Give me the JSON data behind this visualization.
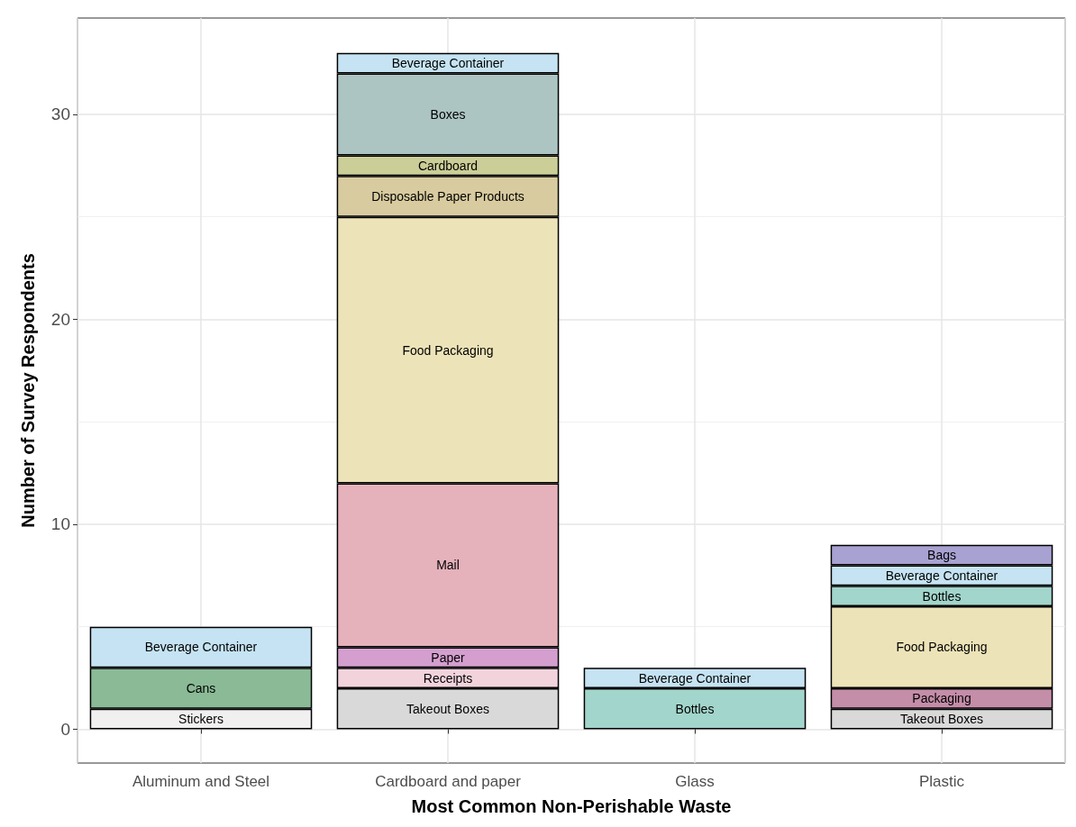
{
  "chart_data": {
    "type": "bar",
    "stacked": true,
    "xlabel": "Most Common Non-Perishable Waste",
    "ylabel": "Number of Survey Respondents",
    "categories": [
      "Aluminum and Steel",
      "Cardboard and paper",
      "Glass",
      "Plastic"
    ],
    "series": [
      {
        "name": "Takeout Boxes",
        "color": "#d9d9d9",
        "values": [
          null,
          2,
          null,
          1
        ]
      },
      {
        "name": "Stickers",
        "color": "#f0f0f0",
        "values": [
          1,
          null,
          null,
          null
        ]
      },
      {
        "name": "Receipts",
        "color": "#f2d3dc",
        "values": [
          null,
          1,
          null,
          null
        ]
      },
      {
        "name": "Paper",
        "color": "#d49fcf",
        "values": [
          null,
          1,
          null,
          null
        ]
      },
      {
        "name": "Packaging",
        "color": "#c48da8",
        "values": [
          null,
          null,
          null,
          1
        ]
      },
      {
        "name": "Mail",
        "color": "#e5b1bb",
        "values": [
          null,
          8,
          null,
          null
        ]
      },
      {
        "name": "Food Packaging",
        "color": "#ede3b8",
        "values": [
          null,
          13,
          null,
          4
        ]
      },
      {
        "name": "Disposable Paper Products",
        "color": "#d8cb9f",
        "values": [
          null,
          2,
          null,
          null
        ]
      },
      {
        "name": "Cardboard",
        "color": "#ccce98",
        "values": [
          null,
          1,
          null,
          null
        ]
      },
      {
        "name": "Cans",
        "color": "#8aba96",
        "values": [
          2,
          null,
          null,
          null
        ]
      },
      {
        "name": "Boxes",
        "color": "#acc4c2",
        "values": [
          null,
          4,
          null,
          null
        ]
      },
      {
        "name": "Bottles",
        "color": "#a2d5cb",
        "values": [
          null,
          null,
          2,
          1
        ]
      },
      {
        "name": "Beverage Container",
        "color": "#c5e3f2",
        "values": [
          2,
          1,
          1,
          1
        ]
      },
      {
        "name": "Bags",
        "color": "#a8a2d2",
        "values": [
          null,
          null,
          null,
          1
        ]
      }
    ],
    "ylim": [
      -1.65,
      34.7
    ],
    "yticks": [
      0,
      10,
      20,
      30
    ],
    "grid": true
  }
}
